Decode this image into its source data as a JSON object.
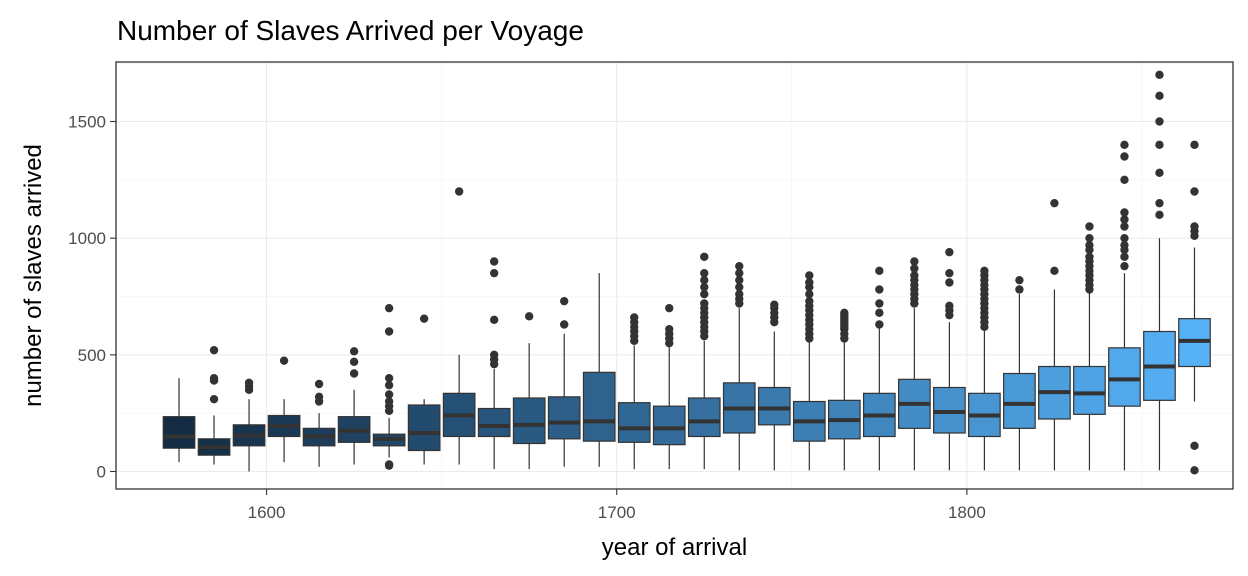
{
  "chart_data": {
    "type": "boxplot",
    "title": "Number of Slaves Arrived per Voyage",
    "xlabel": "year of arrival",
    "ylabel": "number of slaves arrived",
    "xlim": [
      1557,
      1876
    ],
    "ylim": [
      -75,
      1755
    ],
    "x_ticks": [
      1600,
      1700,
      1800
    ],
    "x_tick_labels": [
      "1600",
      "1700",
      "1800"
    ],
    "y_ticks": [
      0,
      500,
      1000,
      1500
    ],
    "y_tick_labels": [
      "0",
      "500",
      "1000",
      "1500"
    ],
    "grid": true,
    "legend": "none",
    "fill_gradient": [
      "#132B43",
      "#56B1F7"
    ],
    "boxes": [
      {
        "decade": 1575,
        "whislo": 40,
        "q1": 100,
        "med": 150,
        "q3": 235,
        "whishi": 400,
        "fliers": []
      },
      {
        "decade": 1585,
        "whislo": 30,
        "q1": 70,
        "med": 105,
        "q3": 140,
        "whishi": 240,
        "fliers": [
          310,
          390,
          400,
          520
        ]
      },
      {
        "decade": 1595,
        "whislo": 0,
        "q1": 110,
        "med": 155,
        "q3": 200,
        "whishi": 310,
        "fliers": [
          350,
          365,
          380
        ]
      },
      {
        "decade": 1605,
        "whislo": 40,
        "q1": 150,
        "med": 195,
        "q3": 240,
        "whishi": 310,
        "fliers": [
          475
        ]
      },
      {
        "decade": 1615,
        "whislo": 20,
        "q1": 110,
        "med": 150,
        "q3": 185,
        "whishi": 250,
        "fliers": [
          300,
          320,
          375
        ]
      },
      {
        "decade": 1625,
        "whislo": 30,
        "q1": 125,
        "med": 175,
        "q3": 235,
        "whishi": 350,
        "fliers": [
          420,
          470,
          515
        ]
      },
      {
        "decade": 1635,
        "whislo": 60,
        "q1": 110,
        "med": 140,
        "q3": 160,
        "whishi": 230,
        "fliers": [
          25,
          30,
          260,
          280,
          300,
          330,
          370,
          400,
          600,
          700
        ]
      },
      {
        "decade": 1645,
        "whislo": 30,
        "q1": 90,
        "med": 165,
        "q3": 285,
        "whishi": 310,
        "fliers": [
          655
        ]
      },
      {
        "decade": 1655,
        "whislo": 30,
        "q1": 150,
        "med": 240,
        "q3": 335,
        "whishi": 500,
        "fliers": [
          1200
        ]
      },
      {
        "decade": 1665,
        "whislo": 10,
        "q1": 150,
        "med": 195,
        "q3": 270,
        "whishi": 440,
        "fliers": [
          460,
          480,
          500,
          650,
          850,
          900
        ]
      },
      {
        "decade": 1675,
        "whislo": 10,
        "q1": 120,
        "med": 200,
        "q3": 315,
        "whishi": 550,
        "fliers": [
          665
        ]
      },
      {
        "decade": 1685,
        "whislo": 20,
        "q1": 140,
        "med": 210,
        "q3": 320,
        "whishi": 590,
        "fliers": [
          630,
          730
        ]
      },
      {
        "decade": 1695,
        "whislo": 20,
        "q1": 130,
        "med": 215,
        "q3": 425,
        "whishi": 850,
        "fliers": []
      },
      {
        "decade": 1705,
        "whislo": 10,
        "q1": 125,
        "med": 185,
        "q3": 295,
        "whishi": 540,
        "fliers": [
          560,
          580,
          600,
          620,
          640,
          660
        ]
      },
      {
        "decade": 1715,
        "whislo": 10,
        "q1": 115,
        "med": 185,
        "q3": 280,
        "whishi": 540,
        "fliers": [
          550,
          570,
          590,
          610,
          700
        ]
      },
      {
        "decade": 1725,
        "whislo": 10,
        "q1": 150,
        "med": 215,
        "q3": 315,
        "whishi": 560,
        "fliers": [
          580,
          600,
          620,
          640,
          660,
          680,
          700,
          720,
          760,
          790,
          820,
          850,
          920
        ]
      },
      {
        "decade": 1735,
        "whislo": 5,
        "q1": 165,
        "med": 270,
        "q3": 380,
        "whishi": 700,
        "fliers": [
          720,
          740,
          760,
          790,
          820,
          850,
          880
        ]
      },
      {
        "decade": 1745,
        "whislo": 5,
        "q1": 200,
        "med": 270,
        "q3": 360,
        "whishi": 600,
        "fliers": [
          640,
          660,
          680,
          700,
          715
        ]
      },
      {
        "decade": 1755,
        "whislo": 5,
        "q1": 130,
        "med": 215,
        "q3": 300,
        "whishi": 560,
        "fliers": [
          570,
          590,
          610,
          630,
          650,
          670,
          690,
          710,
          730,
          760,
          790,
          810,
          840
        ]
      },
      {
        "decade": 1765,
        "whislo": 5,
        "q1": 140,
        "med": 220,
        "q3": 305,
        "whishi": 560,
        "fliers": [
          570,
          590,
          610,
          620,
          630,
          640,
          650,
          660,
          670,
          680
        ]
      },
      {
        "decade": 1775,
        "whislo": 5,
        "q1": 150,
        "med": 240,
        "q3": 335,
        "whishi": 620,
        "fliers": [
          630,
          680,
          720,
          780,
          860
        ]
      },
      {
        "decade": 1785,
        "whislo": 5,
        "q1": 185,
        "med": 290,
        "q3": 395,
        "whishi": 700,
        "fliers": [
          720,
          740,
          760,
          780,
          800,
          820,
          840,
          870,
          900
        ]
      },
      {
        "decade": 1795,
        "whislo": 5,
        "q1": 165,
        "med": 255,
        "q3": 360,
        "whishi": 640,
        "fliers": [
          670,
          690,
          710,
          810,
          850,
          940
        ]
      },
      {
        "decade": 1805,
        "whislo": 5,
        "q1": 150,
        "med": 240,
        "q3": 335,
        "whishi": 610,
        "fliers": [
          620,
          640,
          660,
          680,
          700,
          720,
          740,
          760,
          780,
          800,
          820,
          840,
          860
        ]
      },
      {
        "decade": 1815,
        "whislo": 5,
        "q1": 185,
        "med": 290,
        "q3": 420,
        "whishi": 760,
        "fliers": [
          780,
          820
        ]
      },
      {
        "decade": 1825,
        "whislo": 5,
        "q1": 225,
        "med": 340,
        "q3": 450,
        "whishi": 780,
        "fliers": [
          860,
          1150
        ]
      },
      {
        "decade": 1835,
        "whislo": 5,
        "q1": 245,
        "med": 335,
        "q3": 450,
        "whishi": 770,
        "fliers": [
          780,
          800,
          820,
          840,
          860,
          880,
          900,
          920,
          950,
          970,
          1000,
          1050
        ]
      },
      {
        "decade": 1845,
        "whislo": 5,
        "q1": 280,
        "med": 395,
        "q3": 530,
        "whishi": 850,
        "fliers": [
          880,
          920,
          950,
          970,
          1000,
          1050,
          1080,
          1110,
          1250,
          1350,
          1400
        ]
      },
      {
        "decade": 1855,
        "whislo": 5,
        "q1": 305,
        "med": 450,
        "q3": 600,
        "whishi": 1000,
        "fliers": [
          1100,
          1150,
          1280,
          1400,
          1500,
          1610,
          1700
        ]
      },
      {
        "decade": 1865,
        "whislo": 300,
        "q1": 450,
        "med": 560,
        "q3": 655,
        "whishi": 960,
        "fliers": [
          5,
          110,
          1010,
          1030,
          1050,
          1200,
          1400
        ]
      }
    ]
  }
}
